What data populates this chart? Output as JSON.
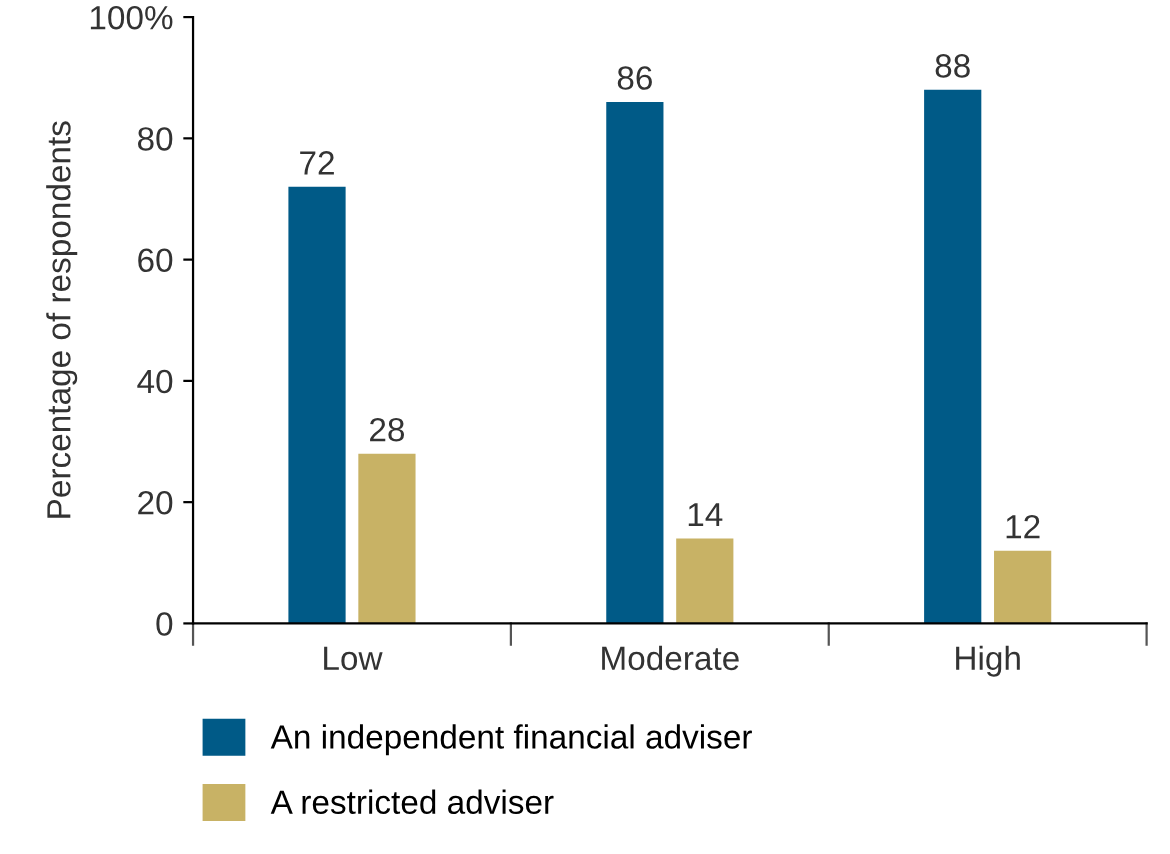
{
  "chart_data": {
    "type": "bar",
    "ylabel": "Percentage of respondents",
    "categories": [
      "Low",
      "Moderate",
      "High"
    ],
    "series": [
      {
        "name": "An independent financial adviser",
        "color": "#005a87",
        "values": [
          72,
          86,
          88
        ]
      },
      {
        "name": "A restricted adviser",
        "color": "#c8b265",
        "values": [
          28,
          14,
          12
        ]
      }
    ],
    "ylim": [
      0,
      100
    ],
    "yticks": [
      0,
      20,
      40,
      60,
      80,
      {
        "value": 100,
        "label": "100%"
      }
    ],
    "grid": false,
    "legend": "bottom",
    "data_labels": true
  }
}
